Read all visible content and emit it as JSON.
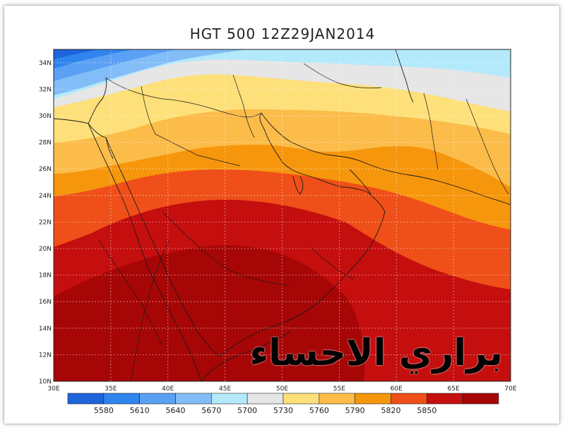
{
  "title": "HGT 500 12Z29JAN2014",
  "watermark": "براري الاحساء",
  "map": {
    "lon_range": [
      30,
      70
    ],
    "lat_range": [
      10,
      35
    ],
    "lon_ticks": [
      "30E",
      "35E",
      "40E",
      "45E",
      "50E",
      "55E",
      "60E",
      "65E",
      "70E"
    ],
    "lat_ticks": [
      "10N",
      "12N",
      "14N",
      "16N",
      "18N",
      "20N",
      "22N",
      "24N",
      "26N",
      "28N",
      "30N",
      "32N",
      "34N"
    ]
  },
  "colorbar": {
    "levels": [
      "5580",
      "5610",
      "5640",
      "5670",
      "5700",
      "5730",
      "5760",
      "5790",
      "5820",
      "5850"
    ],
    "colors": [
      "#1e64dc",
      "#2f84ee",
      "#5aa0f5",
      "#82bdf7",
      "#b3e9fb",
      "#e6e6e6",
      "#fde07a",
      "#fbbc4a",
      "#f6960c",
      "#ef4f18",
      "#c50e0e",
      "#a70606"
    ]
  }
}
